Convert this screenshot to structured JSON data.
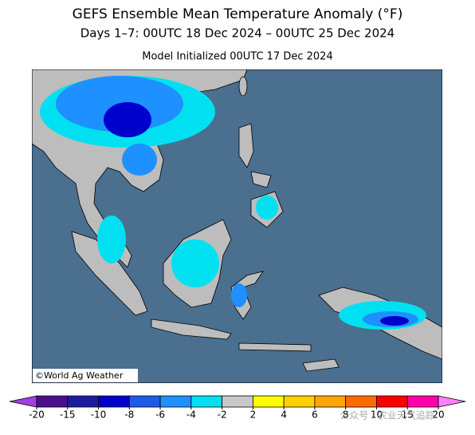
{
  "header": {
    "title": "GEFS Ensemble Mean Temperature Anomaly (°F)",
    "subtitle": "Days 1–7: 00UTC 18 Dec 2024 – 00UTC 25 Dec 2024",
    "initialized": "Model Initialized 00UTC 17 Dec 2024"
  },
  "map": {
    "credit": "©World Ag Weather"
  },
  "colorbar": {
    "ticks": [
      -20,
      -15,
      -10,
      -8,
      -6,
      -4,
      -2,
      2,
      4,
      6,
      8,
      10,
      15,
      20
    ],
    "colors": [
      "#4b0f8c",
      "#1c1ca0",
      "#0000cd",
      "#1e5ae6",
      "#1e90ff",
      "#00e0f0",
      "#c8c8c8",
      "#ffff00",
      "#ffd000",
      "#ffa500",
      "#ff6a00",
      "#ff0000",
      "#ff00aa"
    ],
    "under_color": "#a040e0",
    "over_color": "#ff80ff"
  },
  "watermark": "公众号 · 农业天气追踪"
}
